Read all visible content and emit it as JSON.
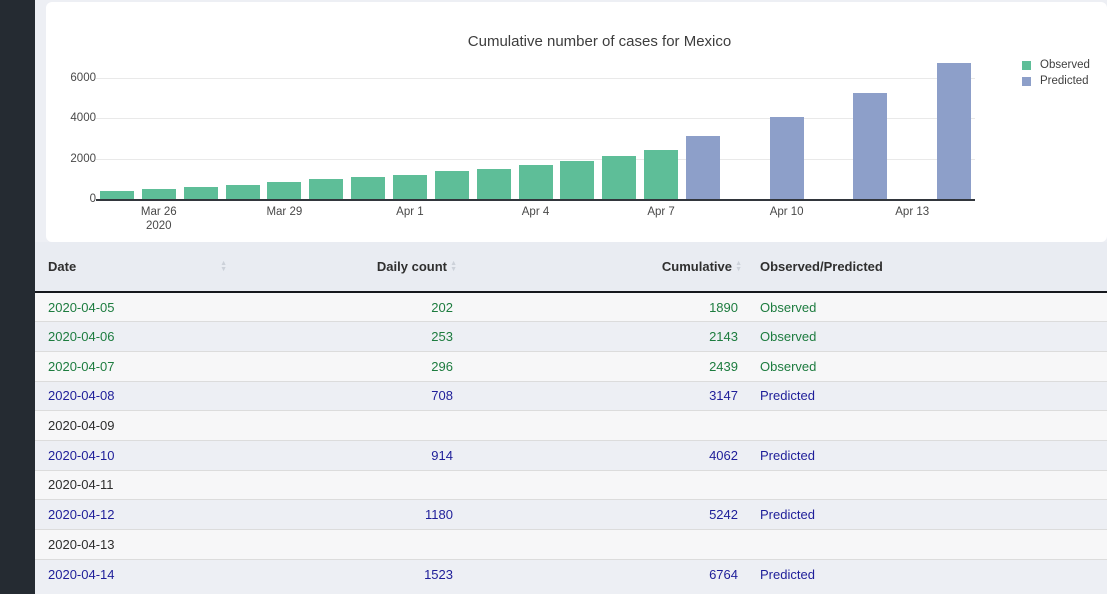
{
  "chart": {
    "title": "Cumulative number of cases for Mexico",
    "colors": {
      "observed": "#5ebe98",
      "predicted": "#8d9fc9"
    },
    "legend": [
      {
        "label": "Observed",
        "series": "observed"
      },
      {
        "label": "Predicted",
        "series": "predicted"
      }
    ]
  },
  "chart_data": {
    "type": "bar",
    "title": "Cumulative number of cases for Mexico",
    "x": [
      "2020-03-25",
      "2020-03-26",
      "2020-03-27",
      "2020-03-28",
      "2020-03-29",
      "2020-03-30",
      "2020-03-31",
      "2020-04-01",
      "2020-04-02",
      "2020-04-03",
      "2020-04-04",
      "2020-04-05",
      "2020-04-06",
      "2020-04-07",
      "2020-04-08",
      "2020-04-09",
      "2020-04-10",
      "2020-04-11",
      "2020-04-12",
      "2020-04-13",
      "2020-04-14"
    ],
    "series": [
      {
        "name": "Observed",
        "color": "#5ebe98",
        "values": [
          405,
          475,
          585,
          717,
          848,
          993,
          1094,
          1215,
          1378,
          1510,
          1688,
          1890,
          2143,
          2439,
          null,
          null,
          null,
          null,
          null,
          null,
          null
        ]
      },
      {
        "name": "Predicted",
        "color": "#8d9fc9",
        "values": [
          null,
          null,
          null,
          null,
          null,
          null,
          null,
          null,
          null,
          null,
          null,
          null,
          null,
          null,
          3147,
          null,
          4062,
          null,
          5242,
          null,
          6764
        ]
      }
    ],
    "xlabel": "",
    "ylabel": "",
    "ylim": [
      0,
      7000
    ],
    "yticks": [
      0,
      2000,
      4000,
      6000
    ],
    "xticks": [
      {
        "i": 1,
        "label": "Mar 26",
        "sub": "2020"
      },
      {
        "i": 4,
        "label": "Mar 29",
        "sub": ""
      },
      {
        "i": 7,
        "label": "Apr 1",
        "sub": ""
      },
      {
        "i": 10,
        "label": "Apr 4",
        "sub": ""
      },
      {
        "i": 13,
        "label": "Apr 7",
        "sub": ""
      },
      {
        "i": 16,
        "label": "Apr 10",
        "sub": ""
      },
      {
        "i": 19,
        "label": "Apr 13",
        "sub": ""
      }
    ],
    "grid": true,
    "legend_position": "top-right"
  },
  "table": {
    "columns": [
      {
        "label": "Date",
        "align": "left",
        "sortable": true
      },
      {
        "label": "Daily count",
        "align": "right",
        "sortable": true
      },
      {
        "label": "Cumulative",
        "align": "right",
        "sortable": true
      },
      {
        "label": "Observed/Predicted",
        "align": "left",
        "sortable": false
      }
    ],
    "rows": [
      {
        "date": "2020-04-05",
        "daily": "202",
        "cumulative": "1890",
        "status": "Observed",
        "type": "observed"
      },
      {
        "date": "2020-04-06",
        "daily": "253",
        "cumulative": "2143",
        "status": "Observed",
        "type": "observed"
      },
      {
        "date": "2020-04-07",
        "daily": "296",
        "cumulative": "2439",
        "status": "Observed",
        "type": "observed"
      },
      {
        "date": "2020-04-08",
        "daily": "708",
        "cumulative": "3147",
        "status": "Predicted",
        "type": "predicted"
      },
      {
        "date": "2020-04-09",
        "daily": "",
        "cumulative": "",
        "status": "",
        "type": "empty"
      },
      {
        "date": "2020-04-10",
        "daily": "914",
        "cumulative": "4062",
        "status": "Predicted",
        "type": "predicted"
      },
      {
        "date": "2020-04-11",
        "daily": "",
        "cumulative": "",
        "status": "",
        "type": "empty"
      },
      {
        "date": "2020-04-12",
        "daily": "1180",
        "cumulative": "5242",
        "status": "Predicted",
        "type": "predicted"
      },
      {
        "date": "2020-04-13",
        "daily": "",
        "cumulative": "",
        "status": "",
        "type": "empty"
      },
      {
        "date": "2020-04-14",
        "daily": "1523",
        "cumulative": "6764",
        "status": "Predicted",
        "type": "predicted"
      }
    ]
  }
}
